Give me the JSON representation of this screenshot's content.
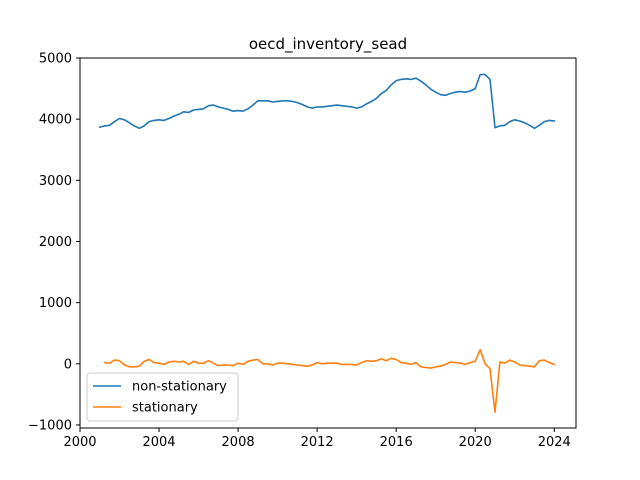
{
  "chart_data": {
    "type": "line",
    "title": "oecd_inventory_sead",
    "xlabel": "",
    "ylabel": "",
    "xlim": [
      2000.0,
      2025.1
    ],
    "ylim": [
      -1050,
      5000
    ],
    "xticks": [
      2000,
      2004,
      2008,
      2012,
      2016,
      2020,
      2024
    ],
    "xtick_labels": [
      "2000",
      "2004",
      "2008",
      "2012",
      "2016",
      "2020",
      "2024"
    ],
    "yticks": [
      -1000,
      0,
      1000,
      2000,
      3000,
      4000,
      5000
    ],
    "ytick_labels": [
      "−1000",
      "0",
      "1000",
      "2000",
      "3000",
      "4000",
      "5000"
    ],
    "grid": false,
    "legend_position": "lower left",
    "series": [
      {
        "name": "non-stationary",
        "color": "#1f77b4",
        "points": [
          [
            2001.0,
            3870
          ],
          [
            2001.25,
            3890
          ],
          [
            2001.5,
            3900
          ],
          [
            2001.75,
            3960
          ],
          [
            2002.0,
            4010
          ],
          [
            2002.25,
            3990
          ],
          [
            2002.5,
            3940
          ],
          [
            2002.75,
            3890
          ],
          [
            2003.0,
            3850
          ],
          [
            2003.25,
            3890
          ],
          [
            2003.5,
            3960
          ],
          [
            2003.75,
            3980
          ],
          [
            2004.0,
            3990
          ],
          [
            2004.25,
            3980
          ],
          [
            2004.5,
            4010
          ],
          [
            2004.75,
            4050
          ],
          [
            2005.0,
            4080
          ],
          [
            2005.25,
            4120
          ],
          [
            2005.5,
            4110
          ],
          [
            2005.75,
            4150
          ],
          [
            2006.0,
            4160
          ],
          [
            2006.25,
            4170
          ],
          [
            2006.5,
            4220
          ],
          [
            2006.75,
            4230
          ],
          [
            2007.0,
            4200
          ],
          [
            2007.25,
            4180
          ],
          [
            2007.5,
            4160
          ],
          [
            2007.75,
            4130
          ],
          [
            2008.0,
            4140
          ],
          [
            2008.25,
            4130
          ],
          [
            2008.5,
            4170
          ],
          [
            2008.75,
            4230
          ],
          [
            2009.0,
            4300
          ],
          [
            2009.25,
            4300
          ],
          [
            2009.5,
            4300
          ],
          [
            2009.75,
            4280
          ],
          [
            2010.0,
            4290
          ],
          [
            2010.25,
            4300
          ],
          [
            2010.5,
            4300
          ],
          [
            2010.75,
            4290
          ],
          [
            2011.0,
            4270
          ],
          [
            2011.25,
            4240
          ],
          [
            2011.5,
            4200
          ],
          [
            2011.75,
            4180
          ],
          [
            2012.0,
            4200
          ],
          [
            2012.25,
            4200
          ],
          [
            2012.5,
            4210
          ],
          [
            2012.75,
            4220
          ],
          [
            2013.0,
            4230
          ],
          [
            2013.25,
            4220
          ],
          [
            2013.5,
            4210
          ],
          [
            2013.75,
            4200
          ],
          [
            2014.0,
            4180
          ],
          [
            2014.25,
            4200
          ],
          [
            2014.5,
            4250
          ],
          [
            2014.75,
            4290
          ],
          [
            2015.0,
            4340
          ],
          [
            2015.25,
            4420
          ],
          [
            2015.5,
            4470
          ],
          [
            2015.75,
            4560
          ],
          [
            2016.0,
            4630
          ],
          [
            2016.25,
            4650
          ],
          [
            2016.5,
            4660
          ],
          [
            2016.75,
            4650
          ],
          [
            2017.0,
            4670
          ],
          [
            2017.25,
            4620
          ],
          [
            2017.5,
            4560
          ],
          [
            2017.75,
            4490
          ],
          [
            2018.0,
            4440
          ],
          [
            2018.25,
            4400
          ],
          [
            2018.5,
            4390
          ],
          [
            2018.75,
            4420
          ],
          [
            2019.0,
            4440
          ],
          [
            2019.25,
            4450
          ],
          [
            2019.5,
            4440
          ],
          [
            2019.75,
            4460
          ],
          [
            2020.0,
            4500
          ],
          [
            2020.25,
            4730
          ],
          [
            2020.5,
            4730
          ],
          [
            2020.75,
            4650
          ],
          [
            2021.0,
            3860
          ],
          [
            2021.25,
            3890
          ],
          [
            2021.5,
            3900
          ],
          [
            2021.75,
            3960
          ],
          [
            2022.0,
            3990
          ],
          [
            2022.25,
            3970
          ],
          [
            2022.5,
            3940
          ],
          [
            2022.75,
            3900
          ],
          [
            2023.0,
            3850
          ],
          [
            2023.25,
            3900
          ],
          [
            2023.5,
            3960
          ],
          [
            2023.75,
            3980
          ],
          [
            2024.0,
            3970
          ]
        ]
      },
      {
        "name": "stationary",
        "color": "#ff7f0e",
        "points": [
          [
            2001.25,
            20
          ],
          [
            2001.5,
            10
          ],
          [
            2001.75,
            60
          ],
          [
            2002.0,
            50
          ],
          [
            2002.25,
            -20
          ],
          [
            2002.5,
            -50
          ],
          [
            2002.75,
            -50
          ],
          [
            2003.0,
            -40
          ],
          [
            2003.25,
            40
          ],
          [
            2003.5,
            70
          ],
          [
            2003.75,
            20
          ],
          [
            2004.0,
            10
          ],
          [
            2004.25,
            -10
          ],
          [
            2004.5,
            30
          ],
          [
            2004.75,
            40
          ],
          [
            2005.0,
            30
          ],
          [
            2005.25,
            40
          ],
          [
            2005.5,
            -10
          ],
          [
            2005.75,
            40
          ],
          [
            2006.0,
            10
          ],
          [
            2006.25,
            10
          ],
          [
            2006.5,
            50
          ],
          [
            2006.75,
            10
          ],
          [
            2007.0,
            -30
          ],
          [
            2007.25,
            -20
          ],
          [
            2007.5,
            -20
          ],
          [
            2007.75,
            -30
          ],
          [
            2008.0,
            10
          ],
          [
            2008.25,
            -10
          ],
          [
            2008.5,
            40
          ],
          [
            2008.75,
            60
          ],
          [
            2009.0,
            70
          ],
          [
            2009.25,
            0
          ],
          [
            2009.5,
            0
          ],
          [
            2009.75,
            -20
          ],
          [
            2010.0,
            10
          ],
          [
            2010.25,
            10
          ],
          [
            2010.5,
            0
          ],
          [
            2010.75,
            -10
          ],
          [
            2011.0,
            -20
          ],
          [
            2011.25,
            -30
          ],
          [
            2011.5,
            -40
          ],
          [
            2011.75,
            -20
          ],
          [
            2012.0,
            20
          ],
          [
            2012.25,
            0
          ],
          [
            2012.5,
            10
          ],
          [
            2012.75,
            10
          ],
          [
            2013.0,
            10
          ],
          [
            2013.25,
            -10
          ],
          [
            2013.5,
            -10
          ],
          [
            2013.75,
            -10
          ],
          [
            2014.0,
            -20
          ],
          [
            2014.25,
            20
          ],
          [
            2014.5,
            50
          ],
          [
            2014.75,
            40
          ],
          [
            2015.0,
            50
          ],
          [
            2015.25,
            80
          ],
          [
            2015.5,
            50
          ],
          [
            2015.75,
            90
          ],
          [
            2016.0,
            70
          ],
          [
            2016.25,
            20
          ],
          [
            2016.5,
            10
          ],
          [
            2016.75,
            -10
          ],
          [
            2017.0,
            20
          ],
          [
            2017.25,
            -50
          ],
          [
            2017.5,
            -60
          ],
          [
            2017.75,
            -70
          ],
          [
            2018.0,
            -50
          ],
          [
            2018.25,
            -40
          ],
          [
            2018.5,
            -10
          ],
          [
            2018.75,
            30
          ],
          [
            2019.0,
            20
          ],
          [
            2019.25,
            10
          ],
          [
            2019.5,
            -10
          ],
          [
            2019.75,
            20
          ],
          [
            2020.0,
            40
          ],
          [
            2020.25,
            230
          ],
          [
            2020.5,
            0
          ],
          [
            2020.75,
            -80
          ],
          [
            2021.0,
            -790
          ],
          [
            2021.25,
            30
          ],
          [
            2021.5,
            10
          ],
          [
            2021.75,
            60
          ],
          [
            2022.0,
            30
          ],
          [
            2022.25,
            -20
          ],
          [
            2022.5,
            -30
          ],
          [
            2022.75,
            -40
          ],
          [
            2023.0,
            -50
          ],
          [
            2023.25,
            50
          ],
          [
            2023.5,
            60
          ],
          [
            2023.75,
            20
          ],
          [
            2024.0,
            -10
          ]
        ]
      }
    ]
  }
}
